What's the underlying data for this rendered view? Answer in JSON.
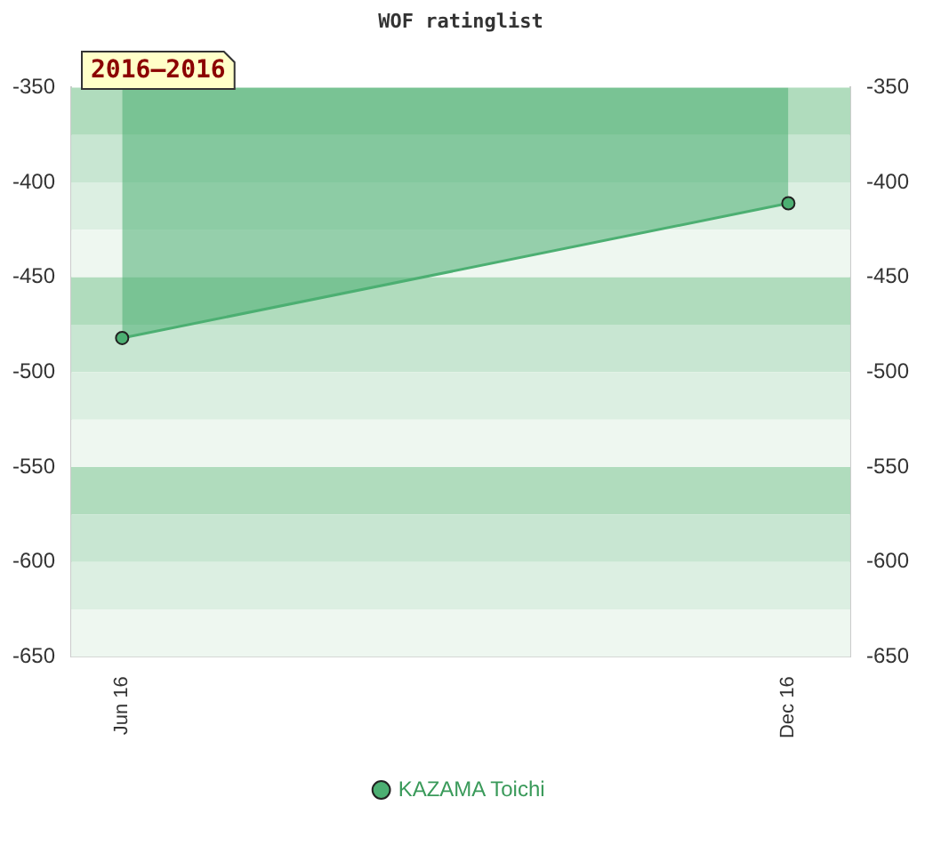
{
  "chart_data": {
    "type": "area",
    "title": "WOF ratinglist",
    "x": [
      "2016-06",
      "2016-12"
    ],
    "xlim": [
      "2016-05-18",
      "2016-12-18"
    ],
    "xticks": [
      {
        "value": "2016-06",
        "label": "Jun 16"
      },
      {
        "value": "2016-12",
        "label": "Dec 16"
      }
    ],
    "series": [
      {
        "name": "KAZAMA Toichi",
        "color": "#4caf72",
        "values": [
          -482,
          -411
        ]
      }
    ],
    "ylim": [
      -650,
      -350
    ],
    "yticks": [
      -650,
      -600,
      -550,
      -500,
      -450,
      -400,
      -350
    ],
    "y2lim": [
      -650,
      -350
    ],
    "y2ticks": [
      -650,
      -600,
      -550,
      -500,
      -450,
      -400,
      -350
    ],
    "bands": [
      {
        "axis": "y",
        "from": -375,
        "to": -350,
        "color": "#b0dcbd"
      },
      {
        "axis": "y",
        "from": -400,
        "to": -375,
        "color": "#c8e6d2"
      },
      {
        "axis": "y",
        "from": -425,
        "to": -400,
        "color": "#dcefe2"
      },
      {
        "axis": "y",
        "from": -450,
        "to": -425,
        "color": "#eef7f0"
      },
      {
        "axis": "y",
        "from": -475,
        "to": -450,
        "color": "#b0dcbd"
      },
      {
        "axis": "y",
        "from": -500,
        "to": -475,
        "color": "#c8e6d2"
      },
      {
        "axis": "y",
        "from": -525,
        "to": -500,
        "color": "#dcefe2"
      },
      {
        "axis": "y",
        "from": -550,
        "to": -525,
        "color": "#eef7f0"
      },
      {
        "axis": "y",
        "from": -575,
        "to": -550,
        "color": "#b0dcbd"
      },
      {
        "axis": "y",
        "from": -600,
        "to": -575,
        "color": "#c8e6d2"
      },
      {
        "axis": "y",
        "from": -625,
        "to": -600,
        "color": "#dcefe2"
      },
      {
        "axis": "y",
        "from": -650,
        "to": -625,
        "color": "#eef7f0"
      }
    ],
    "annotations": [
      "2016–2016"
    ],
    "marker": "circle",
    "grid": false,
    "legend": "bottom"
  }
}
